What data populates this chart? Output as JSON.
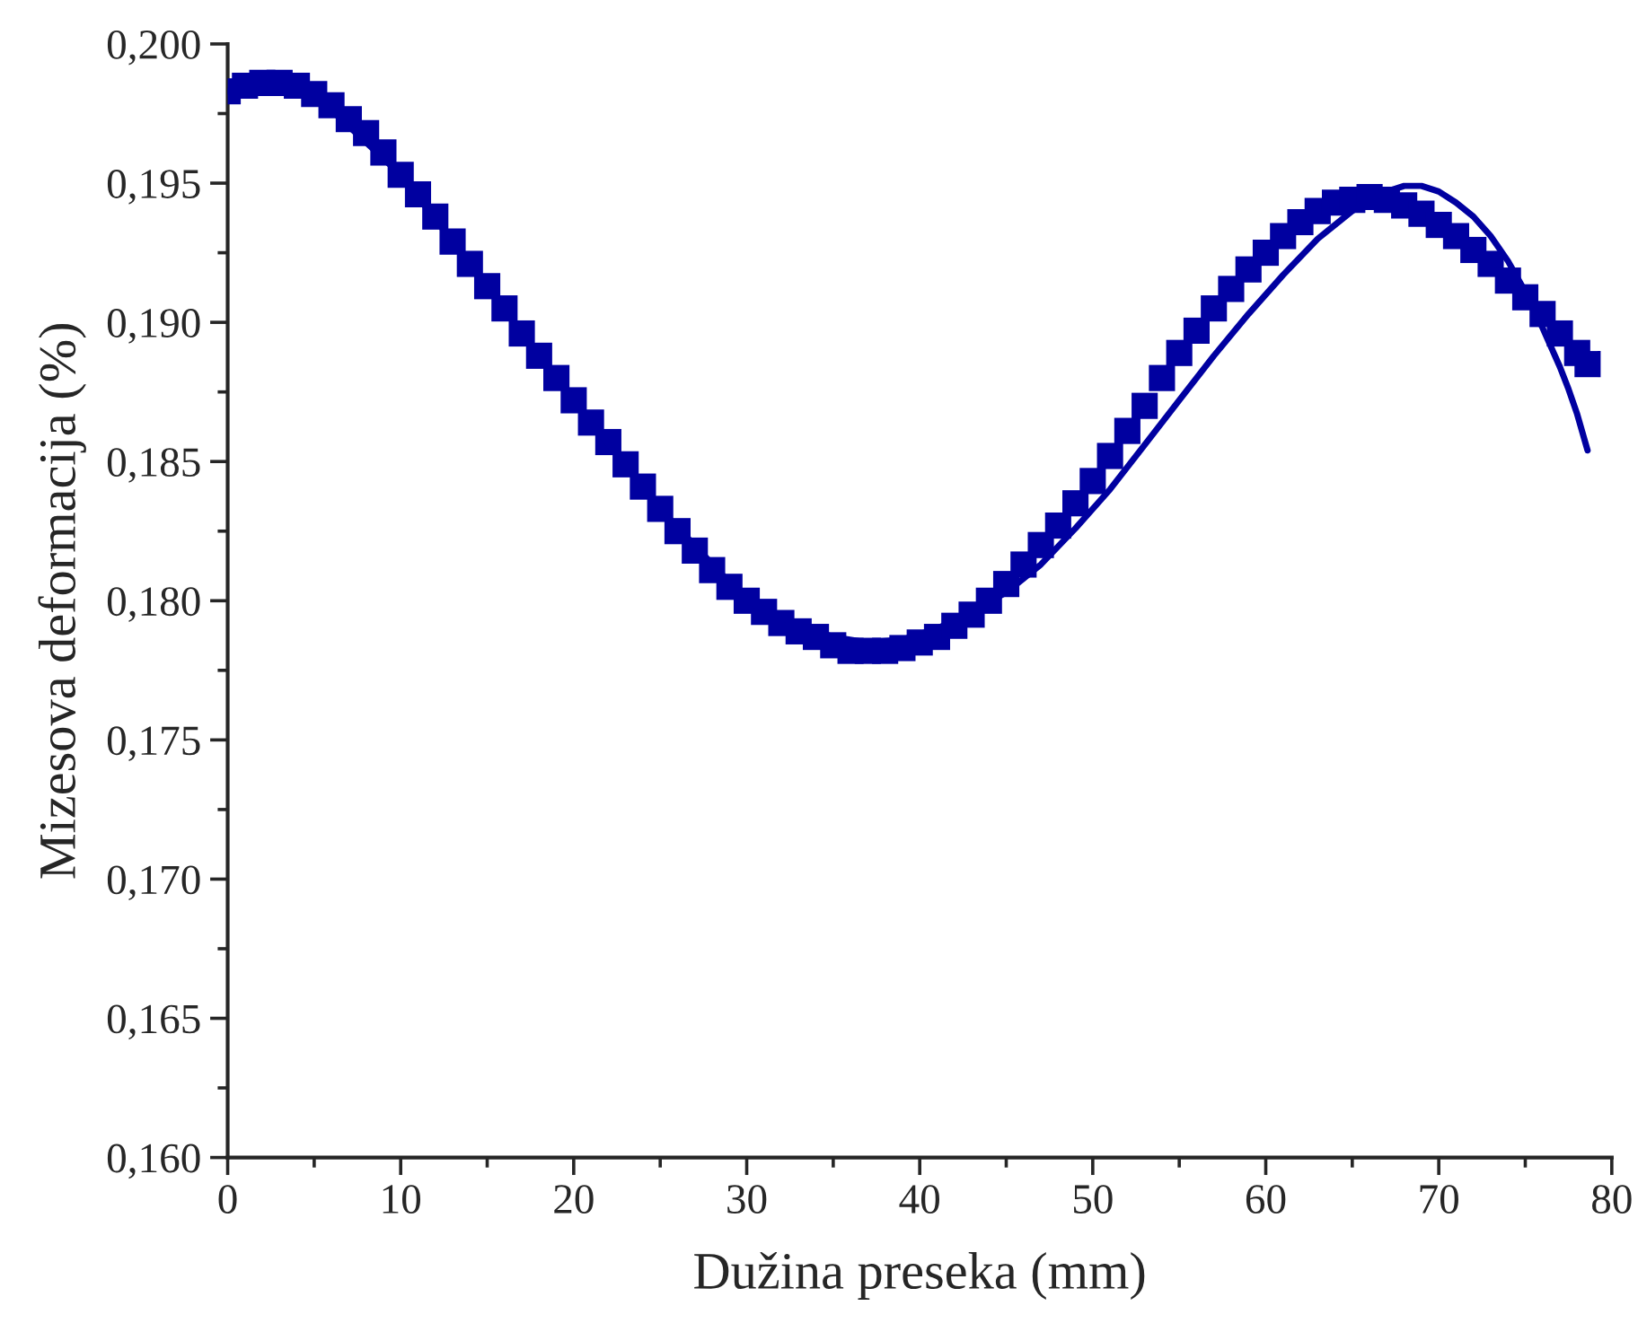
{
  "chart_data": {
    "type": "scatter",
    "xlabel": "Dužina preseka (mm)",
    "ylabel": "Mizesova deformacija (%)",
    "xlim": [
      0,
      80
    ],
    "xticks": [
      0,
      10,
      20,
      30,
      40,
      50,
      60,
      70,
      80
    ],
    "ylim": [
      0.16,
      0.2
    ],
    "yticks": [
      {
        "value": 0.16,
        "label": "0,160"
      },
      {
        "value": 0.165,
        "label": "0,165"
      },
      {
        "value": 0.17,
        "label": "0,170"
      },
      {
        "value": 0.175,
        "label": "0,175"
      },
      {
        "value": 0.18,
        "label": "0,180"
      },
      {
        "value": 0.185,
        "label": "0,185"
      },
      {
        "value": 0.19,
        "label": "0,190"
      },
      {
        "value": 0.195,
        "label": "0,195"
      },
      {
        "value": 0.2,
        "label": "0,200"
      }
    ],
    "grid": false,
    "series": [
      {
        "marker": "square",
        "color": "#0000a0",
        "x": [
          0,
          1,
          2,
          3,
          4,
          5,
          6,
          7,
          8,
          9,
          10,
          11,
          12,
          13,
          14,
          15,
          16,
          17,
          18,
          19,
          20,
          21,
          22,
          23,
          24,
          25,
          26,
          27,
          28,
          29,
          30,
          31,
          32,
          33,
          34,
          35,
          36,
          37,
          38,
          39,
          40,
          41,
          42,
          43,
          44,
          45,
          46,
          47,
          48,
          49,
          50,
          51,
          52,
          53,
          54,
          55,
          56,
          57,
          58,
          59,
          60,
          61,
          62,
          63,
          64,
          65,
          66,
          67,
          68,
          69,
          70,
          71,
          72,
          73,
          74,
          75,
          76,
          77,
          78,
          78.6
        ],
        "values": [
          0.1983,
          0.1985,
          0.1986,
          0.1986,
          0.1985,
          0.1982,
          0.1978,
          0.1973,
          0.1968,
          0.1961,
          0.1953,
          0.1946,
          0.1938,
          0.1929,
          0.1921,
          0.1913,
          0.1905,
          0.1896,
          0.1888,
          0.188,
          0.1872,
          0.1864,
          0.1857,
          0.1849,
          0.1841,
          0.1833,
          0.1825,
          0.1818,
          0.1811,
          0.1805,
          0.18,
          0.1796,
          0.1792,
          0.1789,
          0.1787,
          0.1784,
          0.1782,
          0.1782,
          0.1782,
          0.1783,
          0.1785,
          0.1787,
          0.1791,
          0.1795,
          0.18,
          0.1806,
          0.1813,
          0.182,
          0.1827,
          0.1835,
          0.1843,
          0.1852,
          0.1861,
          0.187,
          0.188,
          0.1889,
          0.1897,
          0.1905,
          0.1912,
          0.1919,
          0.1925,
          0.1931,
          0.1936,
          0.194,
          0.1943,
          0.1944,
          0.1945,
          0.1944,
          0.1942,
          0.1939,
          0.1935,
          0.1931,
          0.1926,
          0.1921,
          0.1915,
          0.1909,
          0.1903,
          0.1896,
          0.1889,
          0.1885
        ]
      },
      {
        "type": "line",
        "marker": "none",
        "line_style": "solid",
        "color": "#0000a0",
        "x": [
          0,
          2,
          5,
          10,
          15,
          20,
          25,
          30,
          33,
          35,
          37,
          39,
          41,
          43,
          45,
          47,
          49,
          51,
          53,
          55,
          57,
          59,
          61,
          63,
          65,
          66,
          67,
          68,
          69,
          70,
          71,
          72,
          73,
          74,
          75,
          76,
          77,
          77.5,
          78,
          78.6
        ],
        "values": [
          0.1983,
          0.1986,
          0.1982,
          0.1953,
          0.1913,
          0.1872,
          0.1833,
          0.18,
          0.1791,
          0.1787,
          0.1785,
          0.1786,
          0.179,
          0.1796,
          0.1803,
          0.1813,
          0.1826,
          0.184,
          0.1856,
          0.1872,
          0.1888,
          0.1903,
          0.1917,
          0.193,
          0.194,
          0.1944,
          0.1947,
          0.1949,
          0.1949,
          0.1947,
          0.1943,
          0.1938,
          0.1931,
          0.1922,
          0.1911,
          0.1898,
          0.1884,
          0.1876,
          0.1867,
          0.1854
        ]
      }
    ]
  }
}
